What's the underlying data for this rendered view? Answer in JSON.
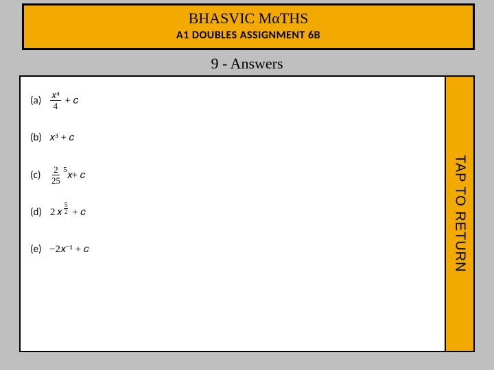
{
  "header": {
    "title": "BHASVIC MαTHS",
    "subtitle": "A1 DOUBLES ASSIGNMENT 6B"
  },
  "section_title": "9 - Answers",
  "colors": {
    "accent": "#f2a900",
    "page_bg": "#bfbfbf",
    "content_bg": "#ffffff",
    "border": "#000000"
  },
  "answers": [
    {
      "label": "(a)",
      "expr": {
        "type": "frac_plus_c",
        "num": "𝑥⁴",
        "den": "4"
      }
    },
    {
      "label": "(b)",
      "expr": {
        "type": "plain",
        "text": "𝑥³ + 𝑐"
      }
    },
    {
      "label": "(c)",
      "expr": {
        "type": "coef_frac_power_plus_c",
        "coef_num": "2",
        "coef_den": "25",
        "base": "𝑥",
        "exp": "5"
      }
    },
    {
      "label": "(d)",
      "expr": {
        "type": "coef_power_frac_plus_c",
        "coef": "2",
        "base": "𝑥",
        "exp_num": "5",
        "exp_den": "2"
      }
    },
    {
      "label": "(e)",
      "expr": {
        "type": "plain",
        "text": "−2𝑥⁻¹ + 𝑐"
      }
    }
  ],
  "sidebar": {
    "label": "TAP TO RETURN"
  }
}
